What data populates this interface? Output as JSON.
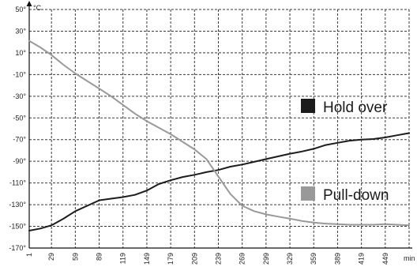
{
  "chart_data": {
    "type": "line",
    "ylabel": "°C",
    "xlabel": "min",
    "ylim": [
      -170,
      50
    ],
    "y_ticks": [
      "50°",
      "30°",
      "10°",
      "-10°",
      "-30°",
      "-50°",
      "-70°",
      "-90°",
      "-110°",
      "-130°",
      "-150°",
      "-170°"
    ],
    "y_tick_values": [
      50,
      30,
      10,
      -10,
      -30,
      -50,
      -70,
      -90,
      -110,
      -130,
      -150,
      -170
    ],
    "x_ticks": [
      "1",
      "29",
      "59",
      "89",
      "119",
      "149",
      "179",
      "209",
      "239",
      "269",
      "299",
      "329",
      "359",
      "389",
      "419",
      "449"
    ],
    "x_tick_values": [
      1,
      29,
      59,
      89,
      119,
      149,
      179,
      209,
      239,
      269,
      299,
      329,
      359,
      389,
      419,
      449
    ],
    "xlim": [
      1,
      479
    ],
    "grid": true,
    "grid_style": "dashed",
    "legend_position": "right",
    "series": [
      {
        "name": "Hold over",
        "color": "#1c1c1c",
        "x": [
          1,
          15,
          29,
          44,
          59,
          74,
          89,
          104,
          119,
          134,
          149,
          164,
          179,
          194,
          209,
          224,
          239,
          254,
          269,
          284,
          299,
          314,
          329,
          344,
          359,
          374,
          389,
          404,
          419,
          434,
          449,
          464,
          479
        ],
        "y": [
          -154,
          -152,
          -149,
          -143,
          -136,
          -131,
          -126,
          -124.5,
          -123,
          -121,
          -117,
          -111,
          -107.5,
          -104.5,
          -102.5,
          -100,
          -98,
          -95,
          -93,
          -90.5,
          -88,
          -85.5,
          -83,
          -81,
          -78.5,
          -75,
          -73,
          -71,
          -70,
          -69.5,
          -68,
          -66,
          -64
        ]
      },
      {
        "name": "Pull-down",
        "color": "#999999",
        "x": [
          1,
          15,
          29,
          44,
          59,
          74,
          89,
          104,
          119,
          134,
          149,
          164,
          179,
          194,
          209,
          224,
          239,
          254,
          269,
          284,
          299,
          314,
          329,
          344,
          359,
          374,
          389,
          404,
          419,
          434,
          449,
          464,
          479
        ],
        "y": [
          21,
          15,
          8,
          -1,
          -9,
          -16,
          -23,
          -30,
          -38,
          -46,
          -53,
          -59,
          -65,
          -72,
          -79,
          -88,
          -104,
          -120,
          -131,
          -136,
          -139,
          -141,
          -143,
          -145,
          -146.5,
          -147.5,
          -148,
          -148.5,
          -148.5,
          -148.5,
          -148,
          -148.5,
          -149
        ]
      }
    ]
  }
}
